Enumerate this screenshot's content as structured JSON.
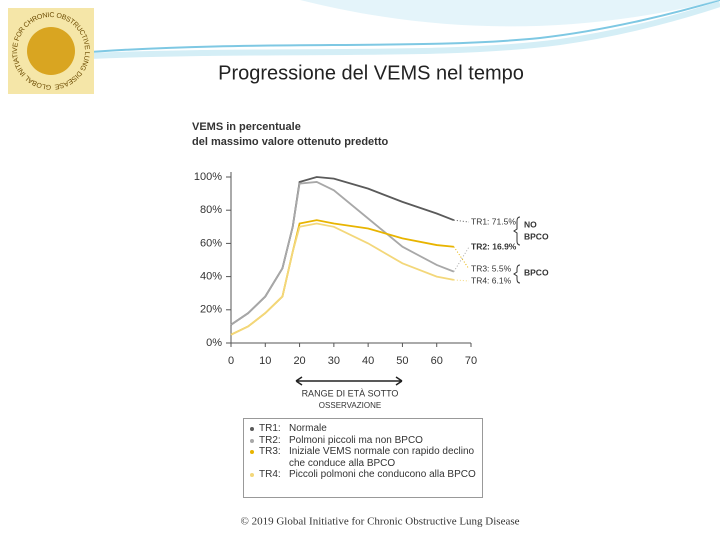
{
  "slide_title": "Progressione del VEMS nel tempo",
  "logo_text": "GLOBAL INITIATIVE FOR CHRONIC OBSTRUCTIVE LUNG DISEASE",
  "footer": "© 2019 Global Initiative for Chronic Obstructive Lung Disease",
  "chart_data": {
    "type": "line",
    "y_label_lines": [
      "VEMS in percentuale",
      "del massimo valore ottenuto predetto"
    ],
    "x_annotation_lines": [
      "RANGE DI ETÀ SOTTO",
      "OSSERVAZIONE"
    ],
    "end_labels": [
      "TR1: 71.5%",
      "TR2: 16.9%",
      "TR3: 5.5%",
      "TR4: 6.1%"
    ],
    "group_labels": [
      [
        "NO",
        "BPCO"
      ],
      [
        "BPCO"
      ]
    ],
    "x": [
      0,
      5,
      10,
      15,
      18,
      20,
      25,
      30,
      40,
      50,
      60,
      65
    ],
    "series": [
      {
        "code": "TR1:",
        "name": "Normale",
        "color": "#5a5a5a",
        "values": [
          11,
          18,
          28,
          45,
          70,
          97,
          100,
          99,
          93,
          85,
          78,
          74
        ]
      },
      {
        "code": "TR2:",
        "name": "Polmoni piccoli ma non BPCO",
        "color": "#a8a8a8",
        "values": [
          11,
          18,
          28,
          45,
          70,
          96,
          97,
          92,
          75,
          58,
          47,
          43
        ]
      },
      {
        "code": "TR3:",
        "name": "Iniziale VEMS normale con rapido declino che conduce alla BPCO",
        "color": "#e8b400",
        "values": [
          5,
          10,
          18,
          28,
          55,
          72,
          74,
          72,
          69,
          63,
          59,
          58
        ]
      },
      {
        "code": "TR4:",
        "name": "Piccoli polmoni che conducono alla BPCO",
        "color": "#f3d77a",
        "values": [
          5,
          10,
          18,
          28,
          55,
          70,
          72,
          70,
          60,
          48,
          40,
          38
        ]
      }
    ],
    "xlim": [
      0,
      70
    ],
    "xticks": [
      0,
      10,
      20,
      30,
      40,
      50,
      60,
      70
    ],
    "ylim": [
      0,
      100
    ],
    "yticks": [
      {
        "value": 0,
        "label": "0%"
      },
      {
        "value": 20,
        "label": "20%"
      },
      {
        "value": 40,
        "label": "40%"
      },
      {
        "value": 60,
        "label": "60%"
      },
      {
        "value": 80,
        "label": "80%"
      },
      {
        "value": 100,
        "label": "100%"
      }
    ],
    "grid": false
  }
}
